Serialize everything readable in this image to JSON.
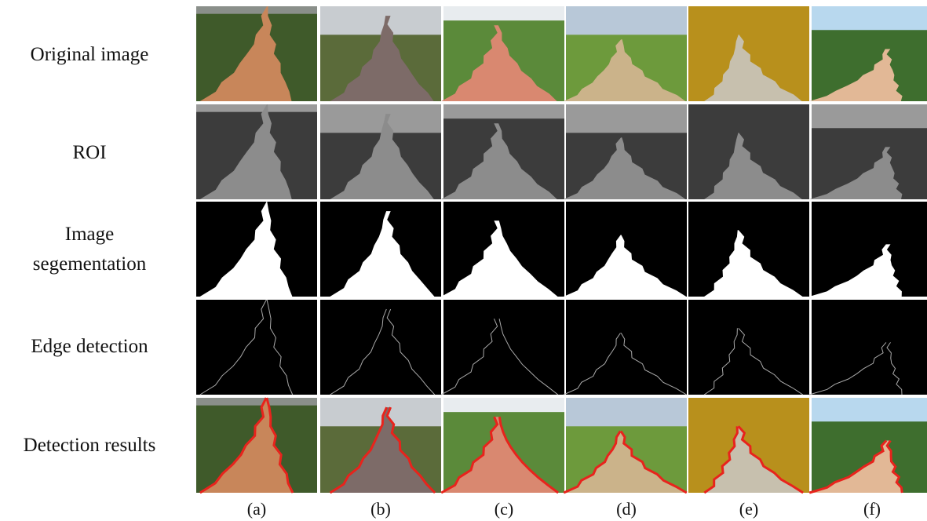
{
  "row_labels": [
    "Original image",
    "ROI",
    "Image\nsegementation",
    "Edge detection",
    "Detection results"
  ],
  "column_labels": [
    "(a)",
    "(b)",
    "(c)",
    "(d)",
    "(e)",
    "(f)"
  ]
}
